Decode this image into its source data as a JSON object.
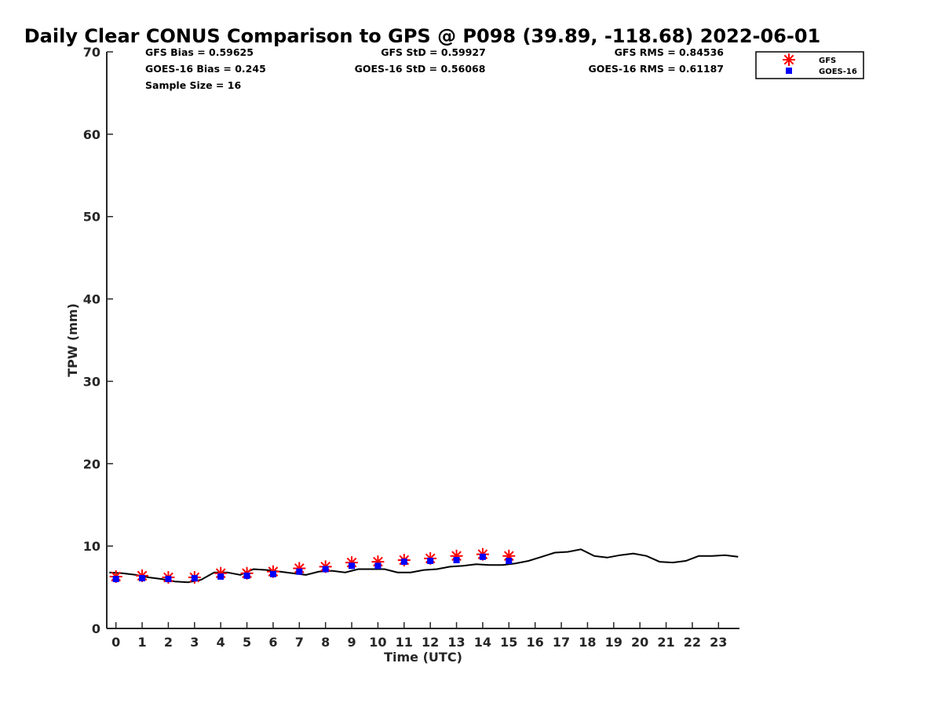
{
  "chart_data": {
    "type": "line",
    "title": "Daily Clear CONUS Comparison to GPS @ P098 (39.89, -118.68) 2022-06-01",
    "xlabel": "Time (UTC)",
    "ylabel": "TPW (mm)",
    "xlim": [
      -0.35,
      23.8
    ],
    "ylim": [
      0,
      70
    ],
    "x_ticks": [
      0,
      1,
      2,
      3,
      4,
      5,
      6,
      7,
      8,
      9,
      10,
      11,
      12,
      13,
      14,
      15,
      16,
      17,
      18,
      19,
      20,
      21,
      22,
      23
    ],
    "y_ticks": [
      0,
      10,
      20,
      30,
      40,
      50,
      60,
      70
    ],
    "grid": false,
    "legend_position": "top-right",
    "stats": {
      "gfs_bias": "GFS Bias = 0.59625",
      "goes_bias": "GOES-16 Bias = 0.245",
      "sample_size": "Sample Size = 16",
      "gfs_std": "GFS StD = 0.59927",
      "goes_std": "GOES-16 StD = 0.56068",
      "gfs_rms": "GFS RMS = 0.84536",
      "goes_rms": "GOES-16 RMS = 0.61187"
    },
    "series": [
      {
        "name": "GFS",
        "kind": "scatter",
        "marker": "asterisk",
        "color": "#ff0000",
        "x": [
          0,
          1,
          2,
          3,
          4,
          5,
          6,
          7,
          8,
          9,
          10,
          11,
          12,
          13,
          14,
          15
        ],
        "y": [
          6.3,
          6.4,
          6.2,
          6.2,
          6.7,
          6.7,
          6.9,
          7.3,
          7.5,
          8.0,
          8.1,
          8.3,
          8.5,
          8.8,
          9.0,
          8.8
        ]
      },
      {
        "name": "GOES-16",
        "kind": "scatter",
        "marker": "square",
        "color": "#0000ff",
        "x": [
          0,
          1,
          2,
          3,
          4,
          5,
          6,
          7,
          8,
          9,
          10,
          11,
          12,
          13,
          14,
          15
        ],
        "y": [
          6.0,
          6.1,
          6.0,
          6.1,
          6.3,
          6.4,
          6.6,
          6.9,
          7.2,
          7.6,
          7.6,
          8.1,
          8.2,
          8.3,
          8.7,
          8.2
        ]
      },
      {
        "kind": "line",
        "color": "#000000",
        "x": [
          -0.25,
          0.25,
          0.75,
          1.25,
          1.75,
          2.25,
          2.75,
          3.25,
          3.75,
          4.25,
          4.75,
          5.25,
          5.75,
          6.25,
          6.75,
          7.25,
          7.75,
          8.25,
          8.75,
          9.25,
          9.75,
          10.25,
          10.75,
          11.25,
          11.75,
          12.25,
          12.75,
          13.25,
          13.75,
          14.25,
          14.75,
          15.25,
          15.75,
          16.25,
          16.75,
          17.25,
          17.75,
          18.25,
          18.75,
          19.25,
          19.75,
          20.25,
          20.75,
          21.25,
          21.75,
          22.25,
          22.75,
          23.25,
          23.75
        ],
        "y": [
          6.8,
          6.7,
          6.5,
          6.2,
          6.0,
          5.7,
          5.6,
          5.9,
          6.8,
          6.8,
          6.5,
          7.2,
          7.1,
          6.9,
          6.7,
          6.5,
          6.9,
          7.0,
          6.8,
          7.2,
          7.2,
          7.2,
          6.8,
          6.8,
          7.1,
          7.2,
          7.5,
          7.6,
          7.8,
          7.7,
          7.7,
          7.9,
          8.2,
          8.7,
          9.2,
          9.3,
          9.6,
          8.8,
          8.6,
          8.9,
          9.1,
          8.8,
          8.1,
          8.0,
          8.2,
          8.8,
          8.8,
          8.9,
          8.7
        ]
      }
    ]
  }
}
